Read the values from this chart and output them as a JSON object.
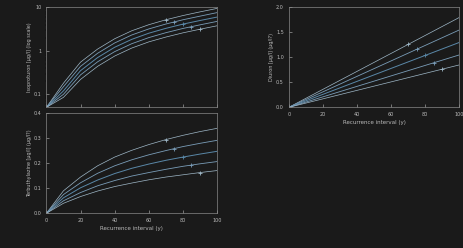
{
  "bg_color": "#1a1a1a",
  "plot_bg": "#1a1a1a",
  "line_color": "#888888",
  "text_color": "#bbbbbb",
  "spine_color": "#888888",
  "top_left": {
    "ylabel": "Isoproturon [µg/l] (log scale)",
    "xlabel": "",
    "xlim": [
      0,
      100
    ],
    "ylim_log": [
      0.05,
      10
    ],
    "yscale": "log",
    "yticks": [
      0.1,
      1,
      10
    ],
    "recurrence": [
      0,
      10,
      20,
      30,
      40,
      50,
      60,
      70,
      80,
      90,
      100
    ],
    "lines": [
      [
        0.05,
        0.18,
        0.55,
        1.1,
        1.9,
        2.9,
        4.0,
        5.2,
        6.5,
        7.9,
        9.5
      ],
      [
        0.05,
        0.15,
        0.44,
        0.88,
        1.52,
        2.32,
        3.2,
        4.15,
        5.2,
        6.3,
        7.6
      ],
      [
        0.05,
        0.12,
        0.35,
        0.7,
        1.21,
        1.84,
        2.55,
        3.3,
        4.13,
        5.0,
        6.0
      ],
      [
        0.05,
        0.1,
        0.28,
        0.56,
        0.96,
        1.46,
        2.02,
        2.62,
        3.28,
        3.97,
        4.77
      ],
      [
        0.05,
        0.085,
        0.22,
        0.44,
        0.76,
        1.16,
        1.61,
        2.08,
        2.6,
        3.15,
        3.78
      ]
    ],
    "marker_positions": [
      6,
      7,
      8,
      8,
      8
    ]
  },
  "bottom_left": {
    "ylabel": "Terbuthylazine [µg/l] (µg/l?)",
    "xlabel": "Recurrence interval (y)",
    "xlim": [
      0,
      100
    ],
    "ylim": [
      0,
      0.4
    ],
    "yticks": [
      0.0,
      0.1,
      0.2,
      0.3,
      0.4
    ],
    "recurrence": [
      0,
      10,
      20,
      30,
      40,
      50,
      60,
      70,
      80,
      90,
      100
    ],
    "lines": [
      [
        0,
        0.09,
        0.145,
        0.19,
        0.225,
        0.252,
        0.275,
        0.295,
        0.312,
        0.327,
        0.34
      ],
      [
        0,
        0.075,
        0.122,
        0.16,
        0.19,
        0.214,
        0.234,
        0.251,
        0.267,
        0.28,
        0.292
      ],
      [
        0,
        0.062,
        0.102,
        0.133,
        0.159,
        0.18,
        0.197,
        0.212,
        0.225,
        0.237,
        0.248
      ],
      [
        0,
        0.05,
        0.083,
        0.11,
        0.131,
        0.149,
        0.163,
        0.176,
        0.188,
        0.198,
        0.207
      ],
      [
        0,
        0.04,
        0.067,
        0.089,
        0.107,
        0.121,
        0.134,
        0.145,
        0.154,
        0.163,
        0.171
      ]
    ],
    "marker_positions": [
      7,
      7,
      8,
      8,
      8
    ]
  },
  "right": {
    "ylabel": "Diuron [µg/l] (µg/l?)",
    "xlabel": "Recurrence interval (y)",
    "xlim": [
      0,
      100
    ],
    "ylim": [
      0,
      2.0
    ],
    "yticks": [
      0.0,
      0.5,
      1.0,
      1.5,
      2.0
    ],
    "recurrence": [
      0,
      10,
      20,
      30,
      40,
      50,
      60,
      70,
      80,
      90,
      100
    ],
    "lines": [
      [
        0,
        0.18,
        0.36,
        0.54,
        0.72,
        0.9,
        1.08,
        1.26,
        1.44,
        1.62,
        1.8
      ],
      [
        0,
        0.155,
        0.31,
        0.465,
        0.62,
        0.775,
        0.93,
        1.085,
        1.24,
        1.395,
        1.55
      ],
      [
        0,
        0.13,
        0.26,
        0.39,
        0.52,
        0.65,
        0.78,
        0.91,
        1.04,
        1.17,
        1.3
      ],
      [
        0,
        0.105,
        0.21,
        0.315,
        0.42,
        0.525,
        0.63,
        0.735,
        0.84,
        0.945,
        1.05
      ],
      [
        0,
        0.085,
        0.17,
        0.255,
        0.34,
        0.425,
        0.51,
        0.595,
        0.68,
        0.765,
        0.85
      ]
    ],
    "marker_positions": [
      7,
      8,
      8,
      8,
      8
    ]
  }
}
